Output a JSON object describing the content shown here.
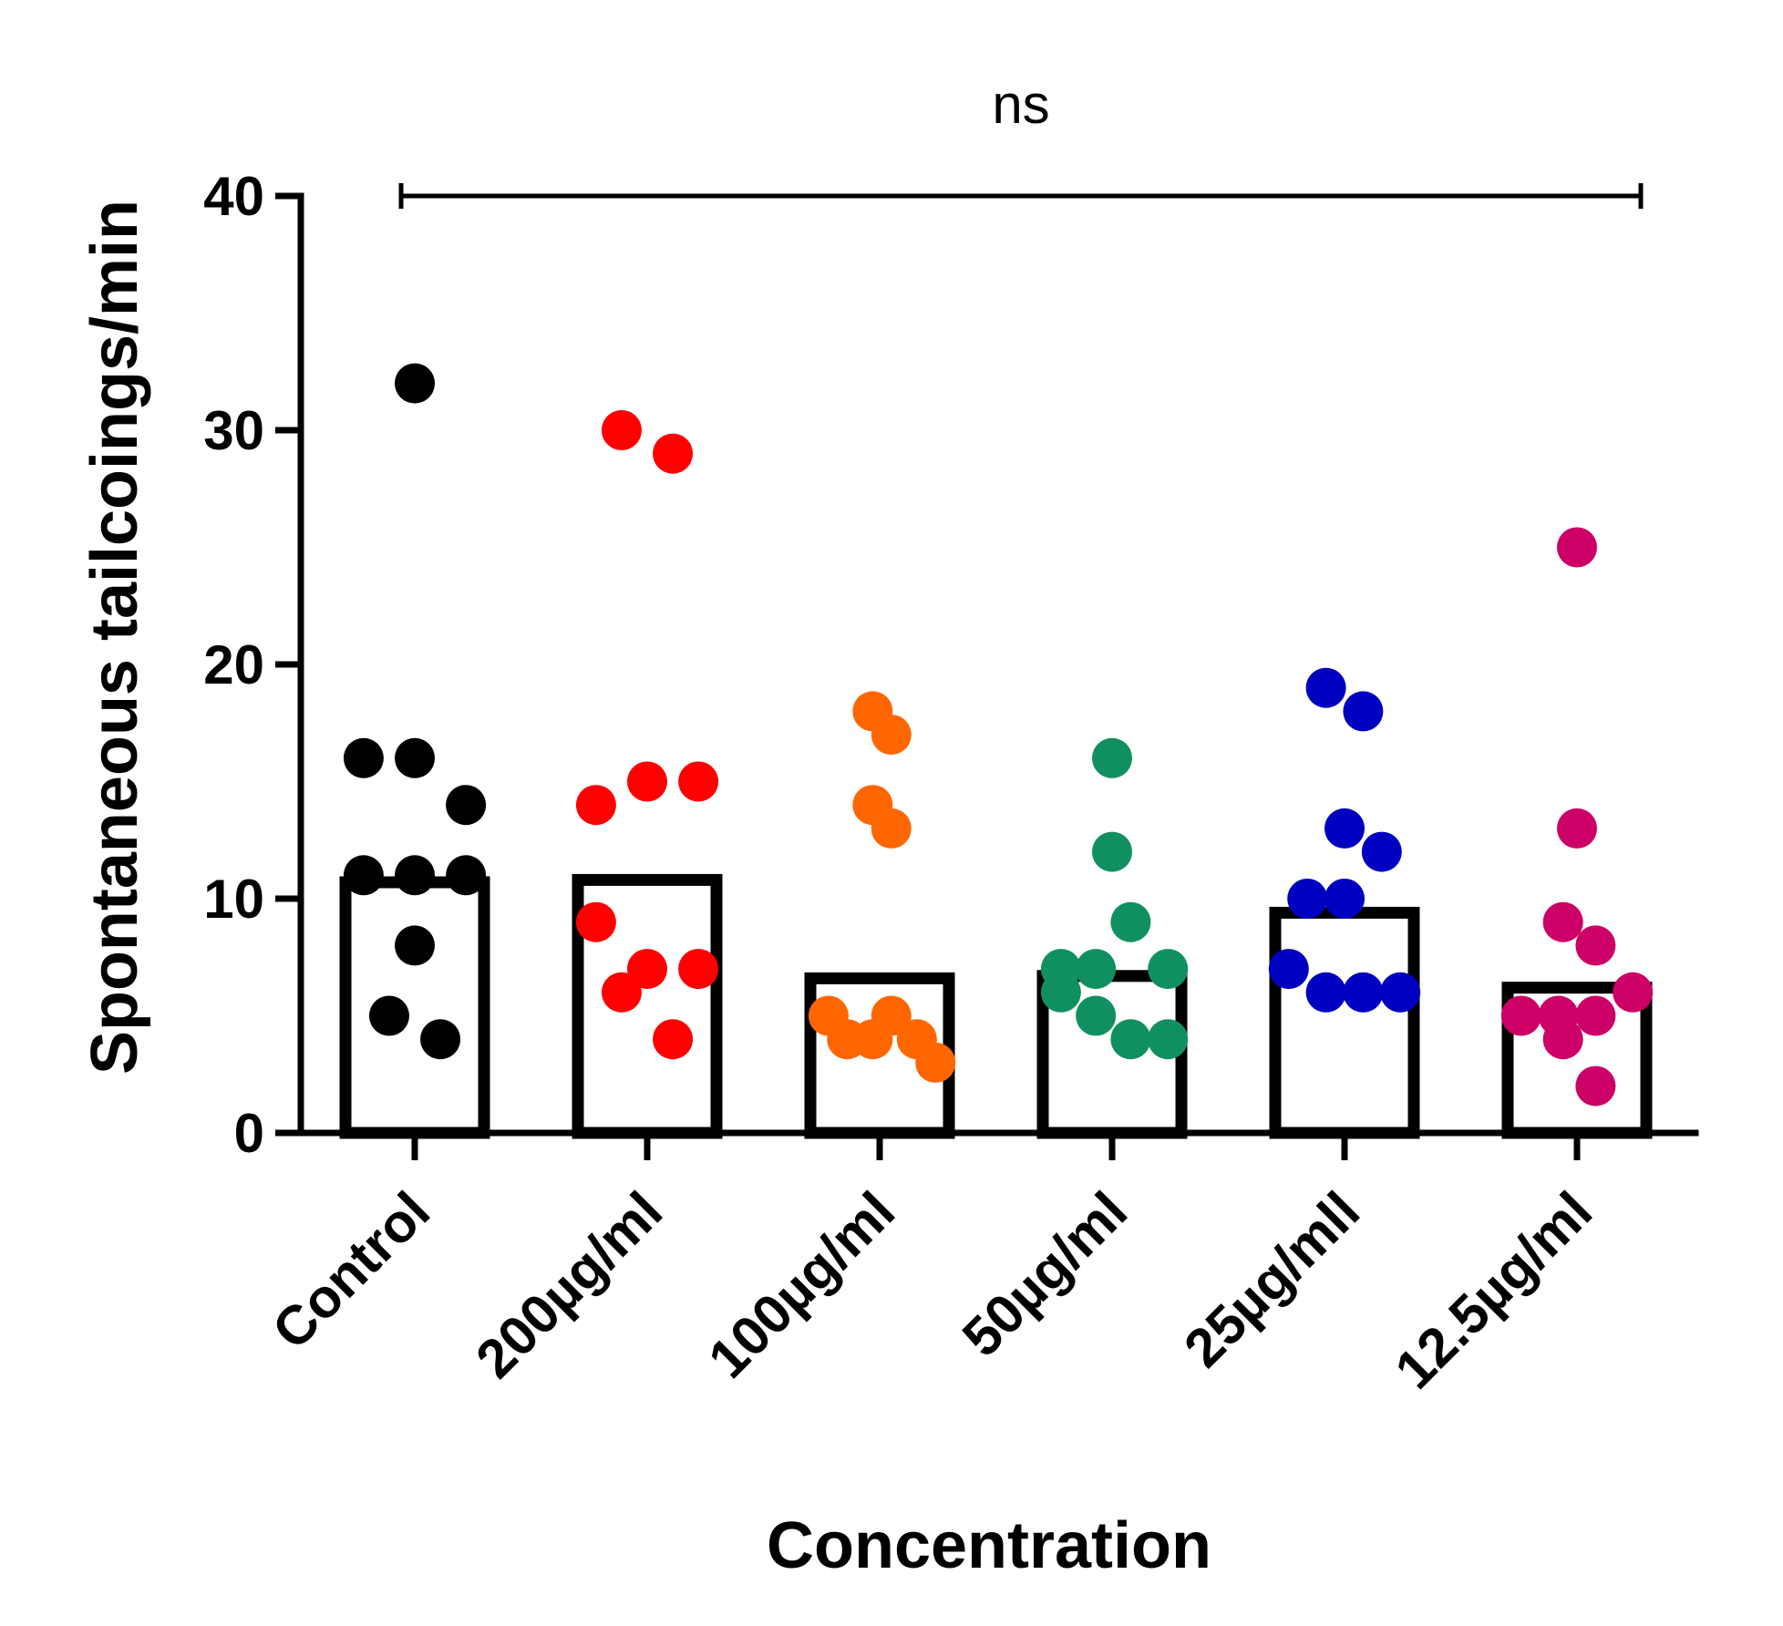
{
  "chart_data": {
    "type": "bar",
    "title": "",
    "xlabel": "Concentration",
    "ylabel": "Spontaneous tailcoings/min",
    "ylim": [
      0,
      40
    ],
    "yticks": [
      0,
      10,
      20,
      30,
      40
    ],
    "categories": [
      "Control",
      "200µg/ml",
      "100µg/ml",
      "50µg/ml",
      "25µg/mll",
      "12.5µg/ml"
    ],
    "values": [
      10.7,
      10.8,
      6.6,
      6.7,
      9.4,
      6.2
    ],
    "colors": [
      "#000000",
      "#ff0000",
      "#ff6600",
      "#109060",
      "#0000c0",
      "#cc0066"
    ],
    "points": [
      [
        [
          0,
          32
        ],
        [
          -0.22,
          16
        ],
        [
          0,
          16
        ],
        [
          0.22,
          14
        ],
        [
          -0.22,
          11
        ],
        [
          0,
          11
        ],
        [
          0.22,
          11
        ],
        [
          0,
          8
        ],
        [
          -0.11,
          5
        ],
        [
          0.11,
          4
        ]
      ],
      [
        [
          -0.11,
          30
        ],
        [
          0.11,
          29
        ],
        [
          -0.22,
          14
        ],
        [
          0,
          15
        ],
        [
          0.22,
          15
        ],
        [
          -0.22,
          9
        ],
        [
          0,
          7
        ],
        [
          0.22,
          7
        ],
        [
          -0.11,
          6
        ],
        [
          0.11,
          4
        ]
      ],
      [
        [
          -0.03,
          18
        ],
        [
          0.05,
          17
        ],
        [
          -0.03,
          14
        ],
        [
          0.05,
          13
        ],
        [
          -0.22,
          5
        ],
        [
          -0.14,
          4
        ],
        [
          -0.03,
          4
        ],
        [
          0.05,
          5
        ],
        [
          0.16,
          4
        ],
        [
          0.24,
          3
        ]
      ],
      [
        [
          0,
          16
        ],
        [
          0,
          12
        ],
        [
          0.08,
          9
        ],
        [
          -0.22,
          7
        ],
        [
          -0.07,
          7
        ],
        [
          0.24,
          7
        ],
        [
          -0.22,
          6
        ],
        [
          -0.07,
          5
        ],
        [
          0.08,
          4
        ],
        [
          0.24,
          4
        ]
      ],
      [
        [
          -0.08,
          19
        ],
        [
          0.08,
          18
        ],
        [
          0,
          13
        ],
        [
          0.16,
          12
        ],
        [
          -0.16,
          10
        ],
        [
          0,
          10
        ],
        [
          -0.24,
          7
        ],
        [
          -0.08,
          6
        ],
        [
          0.08,
          6
        ],
        [
          0.24,
          6
        ]
      ],
      [
        [
          0,
          25
        ],
        [
          0,
          13
        ],
        [
          -0.06,
          9
        ],
        [
          0.08,
          8
        ],
        [
          -0.24,
          5
        ],
        [
          -0.08,
          5
        ],
        [
          0.08,
          5
        ],
        [
          0.24,
          6
        ],
        [
          -0.06,
          4
        ],
        [
          0.08,
          2
        ]
      ]
    ],
    "significance": {
      "label": "ns",
      "from_category": 0,
      "to_category": 5,
      "y": 40
    }
  }
}
